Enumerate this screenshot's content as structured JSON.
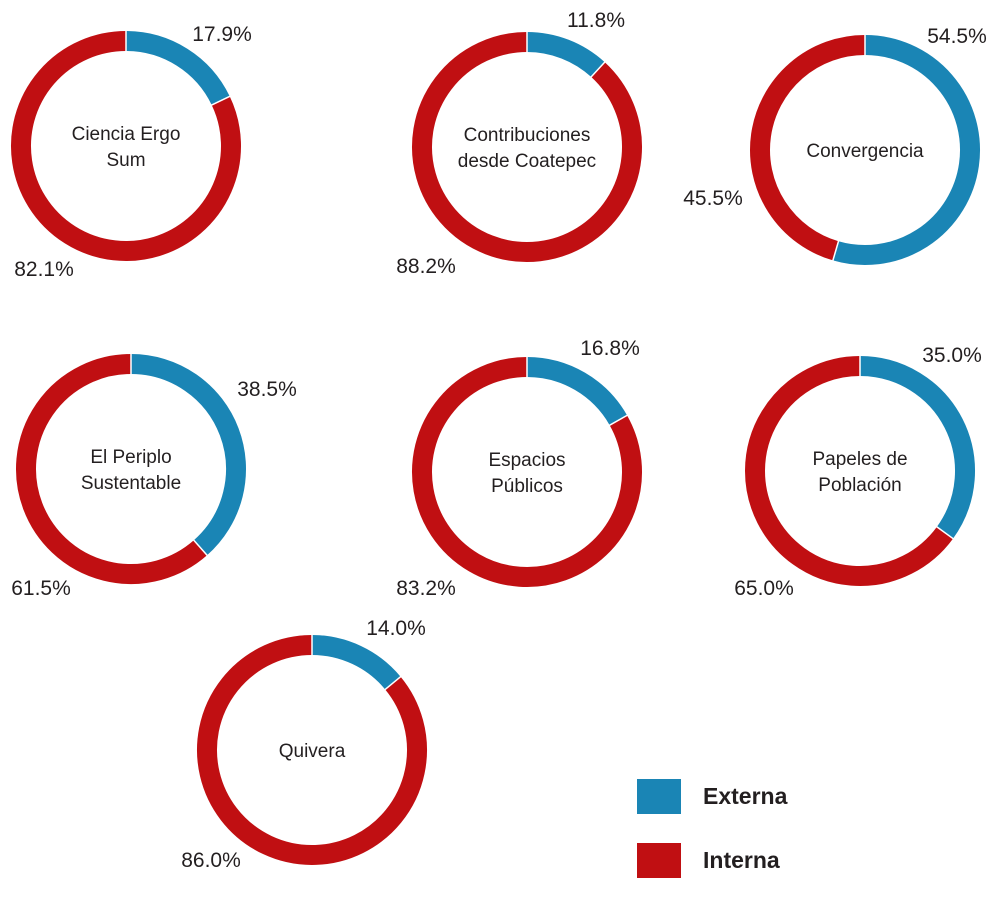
{
  "chart_data": {
    "type": "pie",
    "series_names": [
      "Externa",
      "Interna"
    ],
    "colors": {
      "Externa": "#1a85b5",
      "Interna": "#c00f12"
    },
    "charts": [
      {
        "title": [
          "Ciencia Ergo",
          "Sum"
        ],
        "externa": 17.9,
        "interna": 82.1,
        "externa_label": "17.9%",
        "interna_label": "82.1%"
      },
      {
        "title": [
          "Contribuciones",
          "desde Coatepec"
        ],
        "externa": 11.8,
        "interna": 88.2,
        "externa_label": "11.8%",
        "interna_label": "88.2%"
      },
      {
        "title": [
          "Convergencia"
        ],
        "externa": 54.5,
        "interna": 45.5,
        "externa_label": "54.5%",
        "interna_label": "45.5%"
      },
      {
        "title": [
          "El Periplo",
          "Sustentable"
        ],
        "externa": 38.5,
        "interna": 61.5,
        "externa_label": "38.5%",
        "interna_label": "61.5%"
      },
      {
        "title": [
          "Espacios",
          "Públicos"
        ],
        "externa": 16.8,
        "interna": 83.2,
        "externa_label": "16.8%",
        "interna_label": "83.2%"
      },
      {
        "title": [
          "Papeles de",
          "Población"
        ],
        "externa": 35.0,
        "interna": 65.0,
        "externa_label": "35.0%",
        "interna_label": "65.0%"
      },
      {
        "title": [
          "Quivera"
        ],
        "externa": 14.0,
        "interna": 86.0,
        "externa_label": "14.0%",
        "interna_label": "86.0%"
      }
    ]
  },
  "legend": {
    "items": [
      {
        "label": "Externa",
        "color": "#1a85b5"
      },
      {
        "label": "Interna",
        "color": "#c00f12"
      }
    ]
  }
}
